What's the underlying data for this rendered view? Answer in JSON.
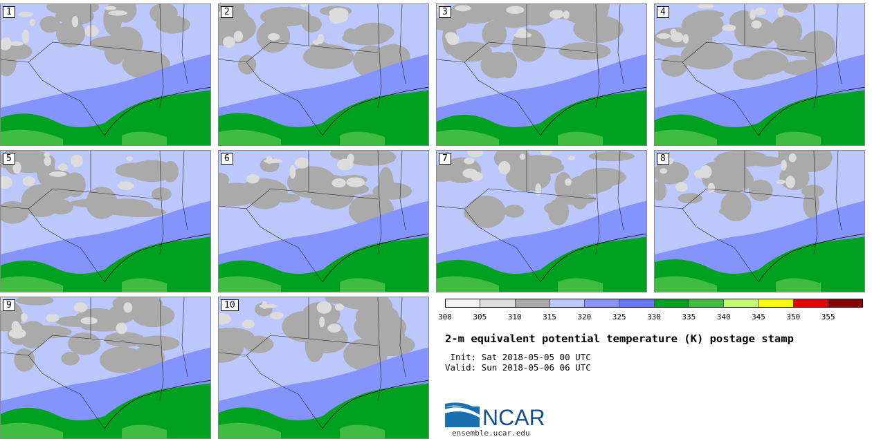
{
  "panels": [
    {
      "label": "1"
    },
    {
      "label": "2"
    },
    {
      "label": "3"
    },
    {
      "label": "4"
    },
    {
      "label": "5"
    },
    {
      "label": "6"
    },
    {
      "label": "7"
    },
    {
      "label": "8"
    },
    {
      "label": "9"
    },
    {
      "label": "10"
    }
  ],
  "colorbar": {
    "colors": [
      "#f2f2f2",
      "#dcdcdc",
      "#aaaaaa",
      "#bcc8fc",
      "#8494fc",
      "#6676f4",
      "#00a020",
      "#40bc40",
      "#c0fc70",
      "#fcfc00",
      "#e80000",
      "#880000"
    ],
    "ticks": [
      "300",
      "305",
      "310",
      "315",
      "320",
      "325",
      "330",
      "335",
      "340",
      "345",
      "350",
      "355"
    ]
  },
  "title": "2-m equivalent potential temperature (K) postage stamp",
  "init": " Init: Sat 2018-05-05 00 UTC",
  "valid": "Valid: Sun 2018-05-06 06 UTC",
  "logo": {
    "text": "NCAR",
    "url": "ensemble.ucar.edu"
  },
  "map_colors": {
    "gray": "#aaaaaa",
    "light_gray": "#dcdcdc",
    "light_blue": "#bcc8fc",
    "mid_blue": "#8494fc",
    "green": "#00a020",
    "light_green": "#40bc40",
    "border": "#222222"
  }
}
